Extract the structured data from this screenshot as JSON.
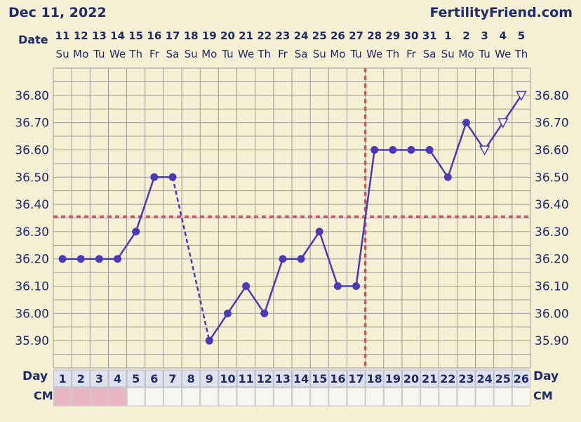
{
  "header": {
    "chart_date": "Dec 11, 2022",
    "site_name": "FertilityFriend.com",
    "date_label": "Date",
    "day_label": "Day",
    "cm_label": "CM"
  },
  "colors": {
    "background": "#f6f0d4",
    "grid_line": "#9a9a9a",
    "series_line": "#4a3ab5",
    "marker_fill": "#4a3ab5",
    "coverline": "#d0555a",
    "label_text": "#1e2a6a",
    "cm_recorded": "#e9b6c4",
    "cm_empty": "#f8f7ef",
    "day_cell": "#dfe2ec"
  },
  "chart_data": {
    "type": "line",
    "dates": [
      "11",
      "12",
      "13",
      "14",
      "15",
      "16",
      "17",
      "18",
      "19",
      "20",
      "21",
      "22",
      "23",
      "24",
      "25",
      "26",
      "27",
      "28",
      "29",
      "30",
      "31",
      "1",
      "2",
      "3",
      "4",
      "5"
    ],
    "weekdays": [
      "Su",
      "Mo",
      "Tu",
      "We",
      "Th",
      "Fr",
      "Sa",
      "Su",
      "Mo",
      "Tu",
      "We",
      "Th",
      "Fr",
      "Sa",
      "Su",
      "Mo",
      "Tu",
      "We",
      "Th",
      "Fr",
      "Sa",
      "Su",
      "Mo",
      "Tu",
      "We",
      "Th"
    ],
    "cycle_days": [
      1,
      2,
      3,
      4,
      5,
      6,
      7,
      8,
      9,
      10,
      11,
      12,
      13,
      14,
      15,
      16,
      17,
      18,
      19,
      20,
      21,
      22,
      23,
      24,
      25,
      26
    ],
    "temperatures": [
      36.2,
      36.2,
      36.2,
      36.2,
      36.3,
      36.5,
      36.5,
      null,
      35.9,
      36.0,
      36.1,
      36.0,
      36.2,
      36.2,
      36.3,
      36.1,
      36.1,
      36.6,
      36.6,
      36.6,
      36.6,
      36.5,
      36.7,
      36.6,
      36.7,
      36.8
    ],
    "marker": [
      "dot",
      "dot",
      "dot",
      "dot",
      "dot",
      "dot",
      "dot",
      null,
      "dot",
      "dot",
      "dot",
      "dot",
      "dot",
      "dot",
      "dot",
      "dot",
      "dot",
      "dot",
      "dot",
      "dot",
      "dot",
      "dot",
      "dot",
      "open-triangle",
      "open-triangle",
      "open-triangle"
    ],
    "dashed_gap": {
      "from_day": 7,
      "to_day": 9
    },
    "ylim": [
      35.8,
      36.9
    ],
    "yticks": [
      35.9,
      36.0,
      36.1,
      36.2,
      36.3,
      36.4,
      36.5,
      36.6,
      36.7,
      36.8
    ],
    "ytick_labels": [
      "35.90",
      "36.00",
      "36.10",
      "36.20",
      "36.30",
      "36.40",
      "36.50",
      "36.60",
      "36.70",
      "36.80"
    ],
    "coverline_temperature": 36.355,
    "ovulation_day": 17,
    "cm_recorded_days": [
      1,
      2,
      3,
      4
    ],
    "grid": true
  }
}
